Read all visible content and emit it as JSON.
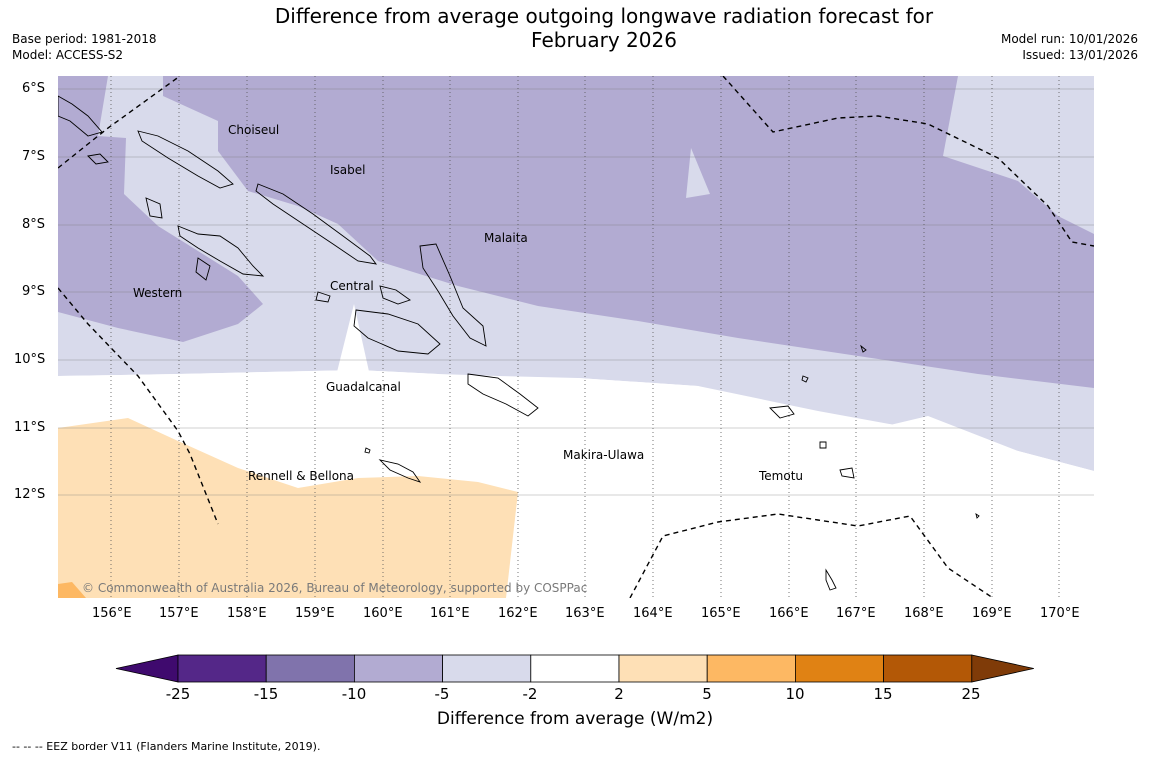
{
  "title": {
    "line1": "Difference from average outgoing longwave radiation forecast for",
    "line2": "February 2026"
  },
  "meta_left": {
    "base_period": "Base period: 1981-2018",
    "model": "Model: ACCESS-S2"
  },
  "meta_right": {
    "model_run": "Model run: 10/01/2026",
    "issued": "Issued: 13/01/2026"
  },
  "map": {
    "lon_labels": [
      "156°E",
      "157°E",
      "158°E",
      "159°E",
      "160°E",
      "161°E",
      "162°E",
      "163°E",
      "164°E",
      "165°E",
      "166°E",
      "167°E",
      "168°E",
      "169°E",
      "170°E"
    ],
    "lat_labels": [
      "6°S",
      "7°S",
      "8°S",
      "9°S",
      "10°S",
      "11°S",
      "12°S"
    ],
    "regions": [
      {
        "name": "Choiseul"
      },
      {
        "name": "Isabel"
      },
      {
        "name": "Malaita"
      },
      {
        "name": "Western"
      },
      {
        "name": "Central"
      },
      {
        "name": "Guadalcanal"
      },
      {
        "name": "Makira-Ulawa"
      },
      {
        "name": "Rennell & Bellona"
      },
      {
        "name": "Temotu"
      }
    ],
    "copyright": "© Commonwealth of Australia 2026, Bureau of Meteorology, supported by COSPPac"
  },
  "colorbar": {
    "ticks": [
      "-25",
      "-15",
      "-10",
      "-5",
      "-2",
      "2",
      "5",
      "10",
      "15",
      "25"
    ],
    "colors": [
      "#3f0a6e",
      "#542788",
      "#8073ac",
      "#b2abd2",
      "#d8daeb",
      "#ffffff",
      "#fee0b6",
      "#fdb863",
      "#e08214",
      "#b35806",
      "#7f3b08"
    ],
    "title": "Difference from average (W/m2)"
  },
  "footnote": "--  --  -- EEZ border V11 (Flanders Marine Institute, 2019)."
}
